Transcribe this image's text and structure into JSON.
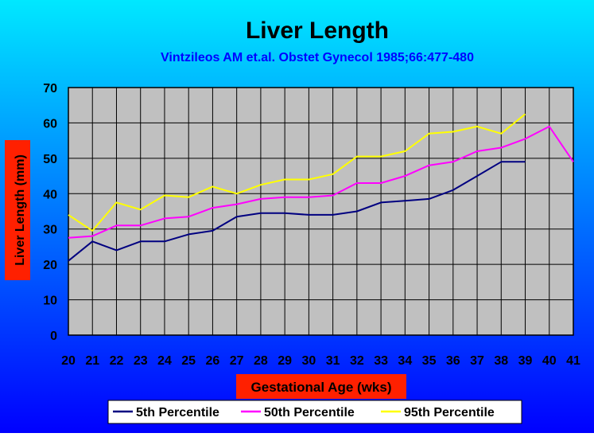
{
  "chart_data": {
    "type": "line",
    "title": "Liver Length",
    "subtitle": "Vintzileos AM et.al. Obstet Gynecol 1985;66:477-480",
    "xlabel": "Gestational Age (wks)",
    "ylabel": "Liver Length (mm)",
    "categories": [
      "20",
      "21",
      "22",
      "23",
      "24",
      "25",
      "26",
      "27",
      "28",
      "29",
      "30",
      "31",
      "32",
      "33",
      "34",
      "35",
      "36",
      "37",
      "38",
      "39",
      "40",
      "41"
    ],
    "ylim": [
      0,
      70
    ],
    "yticks": [
      "0",
      "10",
      "20",
      "30",
      "40",
      "50",
      "60",
      "70"
    ],
    "grid": true,
    "legend_position": "bottom",
    "series": [
      {
        "name": "5th Percentile",
        "color": "#000080",
        "values": [
          21,
          26.5,
          24,
          26.5,
          26.5,
          28.5,
          29.5,
          33.5,
          34.5,
          34.5,
          34,
          34,
          35,
          37.5,
          38,
          38.5,
          41,
          45,
          49,
          49,
          null,
          null
        ]
      },
      {
        "name": "50th Percentile",
        "color": "#ff00ff",
        "values": [
          27.5,
          28,
          31,
          31,
          33,
          33.5,
          36,
          37,
          38.5,
          39,
          39,
          39.5,
          43,
          43,
          45,
          48,
          49,
          52,
          53,
          55.5,
          59,
          49
        ]
      },
      {
        "name": "95th Percentile",
        "color": "#ffff00",
        "values": [
          34,
          29.5,
          37.5,
          35.5,
          39.5,
          39,
          42,
          40,
          42.5,
          44,
          44,
          45.5,
          50.5,
          50.5,
          52,
          57,
          57.5,
          59,
          57,
          62.5,
          null,
          null
        ]
      }
    ]
  },
  "colors": {
    "plot_bg": "#c0c0c0",
    "bg_top": "#00e8ff",
    "bg_bottom": "#0000ff",
    "title": "#000000",
    "subtitle": "#0000ff",
    "label_bg": "#ff2000",
    "label_text": "#000000",
    "legend_bg": "#ffffff"
  }
}
